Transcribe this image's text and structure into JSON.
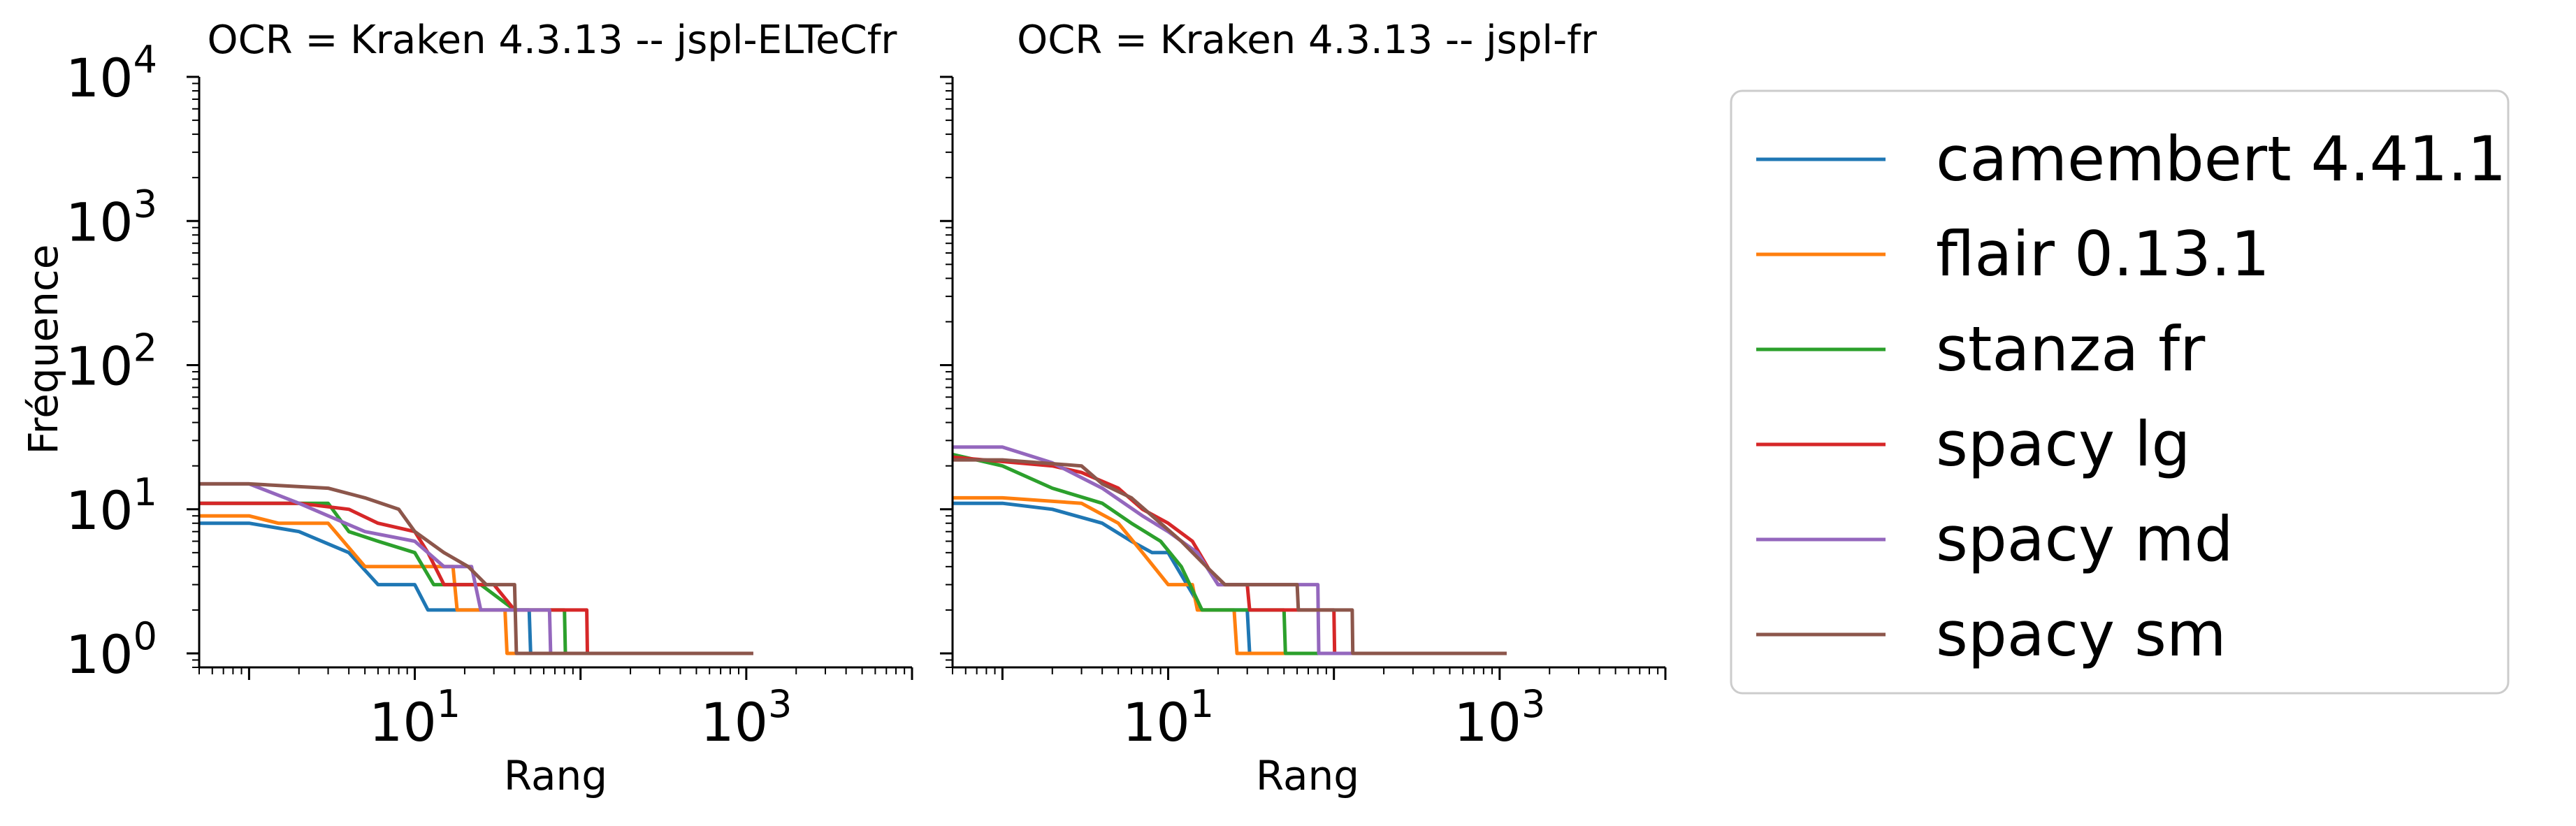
{
  "chart_data": [
    {
      "type": "line",
      "title": "OCR = Kraken 4.3.13 -- jspl-ELTeCfr",
      "xlabel": "Rang",
      "ylabel": "Fréquence",
      "xscale": "log",
      "yscale": "log",
      "xlim": [
        0.5,
        10000
      ],
      "ylim": [
        0.8,
        10000
      ],
      "x_ticks": [
        {
          "value": 10,
          "base": "10",
          "exp": "1"
        },
        {
          "value": 1000,
          "base": "10",
          "exp": "3"
        }
      ],
      "y_ticks": [
        {
          "value": 1,
          "base": "10",
          "exp": "0"
        },
        {
          "value": 10,
          "base": "10",
          "exp": "1"
        },
        {
          "value": 100,
          "base": "10",
          "exp": "2"
        },
        {
          "value": 1000,
          "base": "10",
          "exp": "3"
        },
        {
          "value": 10000,
          "base": "10",
          "exp": "4"
        }
      ],
      "series": [
        {
          "name": "camembert 4.41.1",
          "color": "#1f77b4",
          "points": [
            [
              0.5,
              8
            ],
            [
              1,
              8
            ],
            [
              2,
              7
            ],
            [
              4,
              5
            ],
            [
              6,
              3
            ],
            [
              10,
              3
            ],
            [
              12,
              2
            ],
            [
              20,
              2
            ],
            [
              30,
              2
            ],
            [
              49,
              2
            ],
            [
              50,
              1
            ],
            [
              1100,
              1
            ]
          ]
        },
        {
          "name": "flair 0.13.1",
          "color": "#ff7f0e",
          "points": [
            [
              0.5,
              9
            ],
            [
              1,
              9
            ],
            [
              1.5,
              8
            ],
            [
              3,
              8
            ],
            [
              5,
              4
            ],
            [
              10,
              4
            ],
            [
              17,
              4
            ],
            [
              18,
              2
            ],
            [
              35,
              2
            ],
            [
              36,
              1
            ],
            [
              1100,
              1
            ]
          ]
        },
        {
          "name": "stanza fr",
          "color": "#2ca02c",
          "points": [
            [
              0.5,
              11
            ],
            [
              3,
              11
            ],
            [
              4,
              7
            ],
            [
              6,
              6
            ],
            [
              10,
              5
            ],
            [
              13,
              3
            ],
            [
              25,
              3
            ],
            [
              40,
              2
            ],
            [
              80,
              2
            ],
            [
              81,
              1
            ],
            [
              1100,
              1
            ]
          ]
        },
        {
          "name": "spacy lg",
          "color": "#d62728",
          "points": [
            [
              0.5,
              11
            ],
            [
              2,
              11
            ],
            [
              4,
              10
            ],
            [
              6,
              8
            ],
            [
              10,
              7
            ],
            [
              12,
              5
            ],
            [
              15,
              3
            ],
            [
              30,
              3
            ],
            [
              40,
              2
            ],
            [
              109,
              2
            ],
            [
              110,
              1
            ],
            [
              1100,
              1
            ]
          ]
        },
        {
          "name": "spacy md",
          "color": "#9467bd",
          "points": [
            [
              0.5,
              15
            ],
            [
              1,
              15
            ],
            [
              2,
              11
            ],
            [
              5,
              7
            ],
            [
              10,
              6
            ],
            [
              15,
              4
            ],
            [
              22,
              4
            ],
            [
              25,
              2
            ],
            [
              65,
              2
            ],
            [
              66,
              1
            ],
            [
              1100,
              1
            ]
          ]
        },
        {
          "name": "spacy sm",
          "color": "#8c564b",
          "points": [
            [
              0.5,
              15
            ],
            [
              1,
              15
            ],
            [
              3,
              14
            ],
            [
              5,
              12
            ],
            [
              8,
              10
            ],
            [
              10,
              7
            ],
            [
              15,
              5
            ],
            [
              21,
              4
            ],
            [
              27,
              3
            ],
            [
              40,
              3
            ],
            [
              41,
              1
            ],
            [
              1100,
              1
            ]
          ]
        }
      ]
    },
    {
      "type": "line",
      "title": "OCR = Kraken 4.3.13 -- jspl-fr",
      "xlabel": "Rang",
      "ylabel": "",
      "xscale": "log",
      "yscale": "log",
      "xlim": [
        0.5,
        10000
      ],
      "ylim": [
        0.8,
        10000
      ],
      "x_ticks": [
        {
          "value": 10,
          "base": "10",
          "exp": "1"
        },
        {
          "value": 1000,
          "base": "10",
          "exp": "3"
        }
      ],
      "series": [
        {
          "name": "camembert 4.41.1",
          "color": "#1f77b4",
          "points": [
            [
              0.5,
              11
            ],
            [
              1,
              11
            ],
            [
              2,
              10
            ],
            [
              4,
              8
            ],
            [
              6,
              6
            ],
            [
              8,
              5
            ],
            [
              10,
              5
            ],
            [
              13,
              3
            ],
            [
              16,
              2
            ],
            [
              30,
              2
            ],
            [
              31,
              1
            ],
            [
              1100,
              1
            ]
          ]
        },
        {
          "name": "flair 0.13.1",
          "color": "#ff7f0e",
          "points": [
            [
              0.5,
              12
            ],
            [
              1,
              12
            ],
            [
              3,
              11
            ],
            [
              5,
              8
            ],
            [
              7,
              5
            ],
            [
              10,
              3
            ],
            [
              14,
              3
            ],
            [
              15,
              2
            ],
            [
              25,
              2
            ],
            [
              26,
              1
            ],
            [
              1100,
              1
            ]
          ]
        },
        {
          "name": "stanza fr",
          "color": "#2ca02c",
          "points": [
            [
              0.5,
              24
            ],
            [
              1,
              20
            ],
            [
              2,
              14
            ],
            [
              4,
              11
            ],
            [
              6,
              8
            ],
            [
              9,
              6
            ],
            [
              12,
              4
            ],
            [
              16,
              2
            ],
            [
              50,
              2
            ],
            [
              51,
              1
            ],
            [
              1100,
              1
            ]
          ]
        },
        {
          "name": "spacy lg",
          "color": "#d62728",
          "points": [
            [
              0.5,
              23
            ],
            [
              2,
              20
            ],
            [
              3,
              18
            ],
            [
              5,
              14
            ],
            [
              7,
              10
            ],
            [
              10,
              8
            ],
            [
              14,
              6
            ],
            [
              20,
              3
            ],
            [
              30,
              3
            ],
            [
              31,
              2
            ],
            [
              100,
              2
            ],
            [
              101,
              1
            ],
            [
              1100,
              1
            ]
          ]
        },
        {
          "name": "spacy md",
          "color": "#9467bd",
          "points": [
            [
              0.5,
              27
            ],
            [
              1,
              27
            ],
            [
              2,
              21
            ],
            [
              4,
              14
            ],
            [
              7,
              9
            ],
            [
              10,
              7
            ],
            [
              15,
              5
            ],
            [
              20,
              3
            ],
            [
              80,
              3
            ],
            [
              81,
              1
            ],
            [
              1100,
              1
            ]
          ]
        },
        {
          "name": "spacy sm",
          "color": "#8c564b",
          "points": [
            [
              0.5,
              22
            ],
            [
              1,
              22
            ],
            [
              3,
              20
            ],
            [
              4,
              15
            ],
            [
              6,
              12
            ],
            [
              9,
              8
            ],
            [
              12,
              6
            ],
            [
              17,
              4
            ],
            [
              22,
              3
            ],
            [
              60,
              3
            ],
            [
              61,
              2
            ],
            [
              129,
              2
            ],
            [
              130,
              1
            ],
            [
              1100,
              1
            ]
          ]
        }
      ]
    }
  ],
  "legend": {
    "position": "right",
    "entries": [
      {
        "label": "camembert 4.41.1",
        "color": "#1f77b4"
      },
      {
        "label": "flair 0.13.1",
        "color": "#ff7f0e"
      },
      {
        "label": "stanza fr",
        "color": "#2ca02c"
      },
      {
        "label": "spacy lg",
        "color": "#d62728"
      },
      {
        "label": "spacy md",
        "color": "#9467bd"
      },
      {
        "label": "spacy sm",
        "color": "#8c564b"
      }
    ]
  }
}
